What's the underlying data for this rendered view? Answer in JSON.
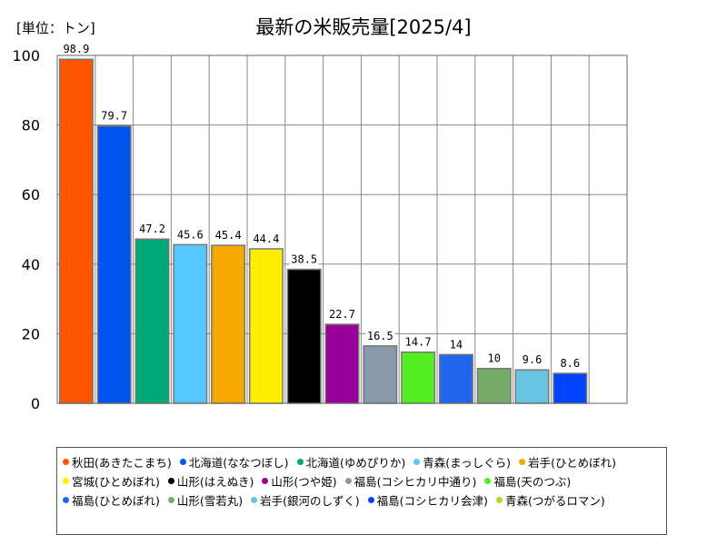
{
  "chart_data": {
    "type": "bar",
    "title": "最新の米販売量[2025/4]",
    "unit_label": "[単位：トン]",
    "ylim": [
      0,
      100
    ],
    "yticks": [
      0,
      20,
      40,
      60,
      80,
      100
    ],
    "grid": true,
    "legend_position": "bottom",
    "categories": [
      "秋田(あきたこまち)",
      "北海道(ななつぼし)",
      "北海道(ゆめぴりか)",
      "青森(まっしぐら)",
      "岩手(ひとめぼれ)",
      "宮城(ひとめぼれ)",
      "山形(はえぬき)",
      "山形(つや姫)",
      "福島(コシヒカリ中通り)",
      "福島(天のつぶ)",
      "福島(ひとめぼれ)",
      "山形(雪若丸)",
      "岩手(銀河のしずく)",
      "福島(コシヒカリ会津)",
      "青森(つがるロマン)"
    ],
    "values": [
      98.9,
      79.7,
      47.2,
      45.6,
      45.4,
      44.4,
      38.5,
      22.7,
      16.5,
      14.7,
      14,
      10,
      9.6,
      8.6,
      null
    ],
    "value_labels": [
      "98.9",
      "79.7",
      "47.2",
      "45.6",
      "45.4",
      "44.4",
      "38.5",
      "22.7",
      "16.5",
      "14.7",
      "14",
      "10",
      "9.6",
      "8.6",
      ""
    ],
    "colors": [
      "#ff5500",
      "#0055ee",
      "#00aa77",
      "#55c8ff",
      "#f5a800",
      "#ffee00",
      "#000000",
      "#990099",
      "#8899aa",
      "#55ee22",
      "#2266ee",
      "#77aa66",
      "#66c4e0",
      "#0044ff",
      "#aadd22"
    ]
  }
}
